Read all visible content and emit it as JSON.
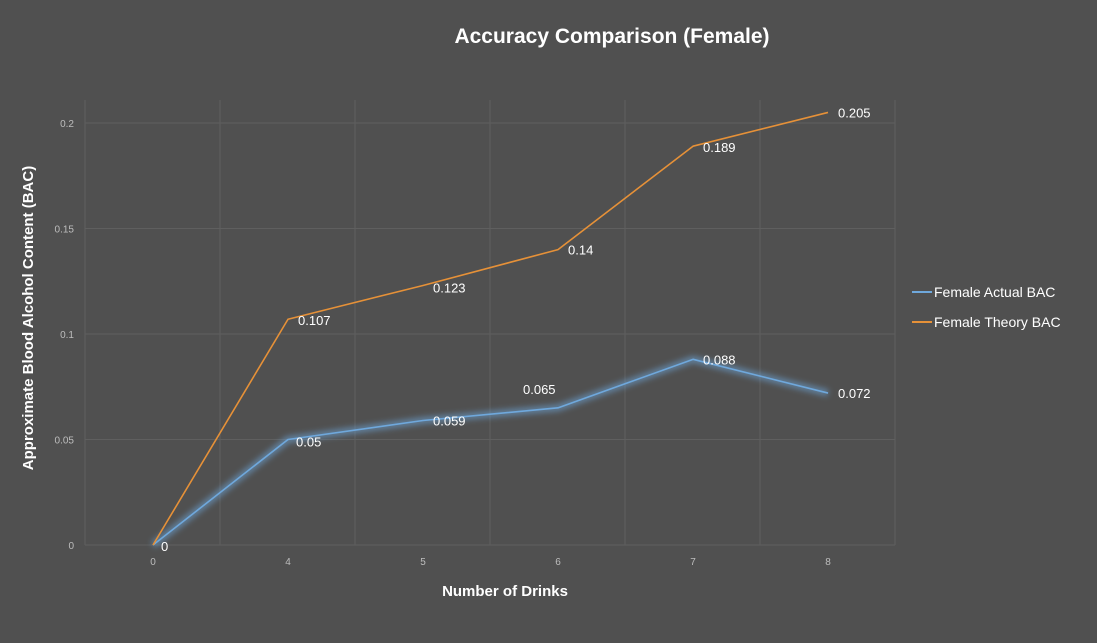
{
  "chart_data": {
    "type": "line",
    "title": "Accuracy Comparison (Female)",
    "xlabel": "Number of Drinks",
    "ylabel": "Approximate Blood Alcohol Content (BAC)",
    "categories": [
      "0",
      "4",
      "5",
      "6",
      "7",
      "8"
    ],
    "ylim": [
      0,
      0.2
    ],
    "yticks": [
      "0",
      "0.05",
      "0.1",
      "0.15",
      "0.2"
    ],
    "grid": true,
    "legend_position": "right",
    "series": [
      {
        "name": "Female Actual BAC",
        "color": "#6fa8dc",
        "values": [
          0,
          0.05,
          0.059,
          0.065,
          0.088,
          0.072
        ],
        "labels": [
          "0",
          "0.05",
          "0.059",
          "0.065",
          "0.088",
          "0.072"
        ]
      },
      {
        "name": "Female Theory BAC",
        "color": "#e69138",
        "values": [
          0,
          0.107,
          0.123,
          0.14,
          0.189,
          0.205
        ],
        "labels": [
          "",
          "0.107",
          "0.123",
          "0.14",
          "0.189",
          "0.205"
        ]
      }
    ]
  }
}
